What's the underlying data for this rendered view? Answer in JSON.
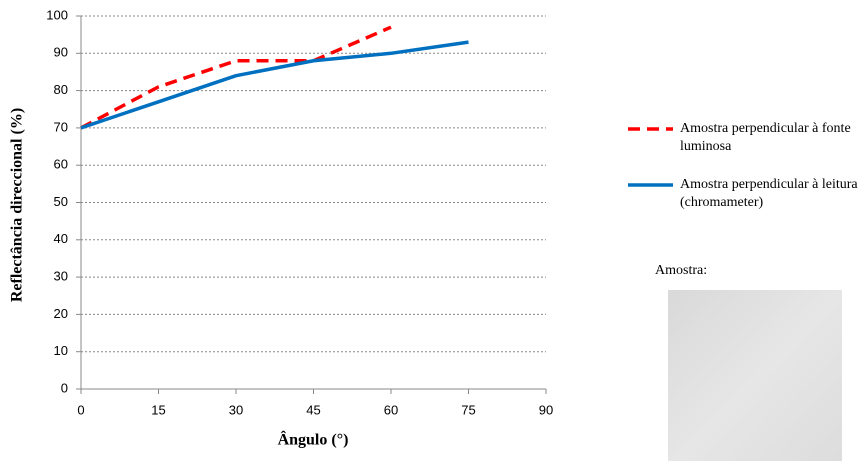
{
  "chart_data": {
    "type": "line",
    "x_label": "Ângulo (°)",
    "y_label": "Reflectância direccional (%)",
    "series": [
      {
        "name": "Amostra perpendicular à fonte luminosa",
        "color": "#ff0000",
        "dashed": true,
        "x": [
          0,
          15,
          30,
          45,
          60
        ],
        "values": [
          70,
          81,
          88,
          88,
          97
        ]
      },
      {
        "name": "Amostra perpendicular à leitura (chromameter)",
        "color": "#0070c0",
        "dashed": false,
        "x": [
          0,
          15,
          30,
          45,
          60,
          75
        ],
        "values": [
          70,
          77,
          84,
          88,
          90,
          93
        ]
      }
    ],
    "xlim": [
      0,
      90
    ],
    "xticks": [
      0,
      15,
      30,
      45,
      60,
      75,
      90
    ],
    "ylim": [
      0,
      100
    ],
    "yticks": [
      0,
      10,
      20,
      30,
      40,
      50,
      60,
      70,
      80,
      90,
      100
    ],
    "grid": true,
    "legend": "right",
    "sample_label": "Amostra:"
  }
}
